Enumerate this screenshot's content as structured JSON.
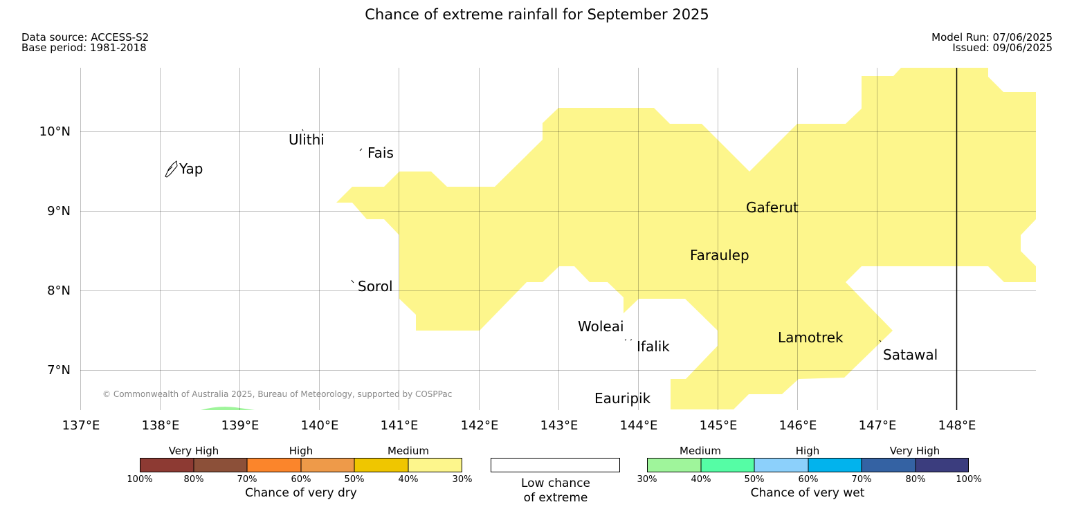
{
  "header": {
    "title": "Chance of extreme rainfall for September 2025",
    "data_source": "Data source: ACCESS-S2",
    "base_period": "Base period: 1981-2018",
    "model_run": "Model Run: 07/06/2025",
    "issued": "Issued: 09/06/2025"
  },
  "map": {
    "longitude_labels": [
      "137°E",
      "138°E",
      "139°E",
      "140°E",
      "141°E",
      "142°E",
      "143°E",
      "144°E",
      "145°E",
      "146°E",
      "147°E",
      "148°E"
    ],
    "latitude_labels": [
      "10°N",
      "9°N",
      "8°N",
      "7°N"
    ],
    "places": [
      "Yap",
      "Ulithi",
      "Fais",
      "Gaferut",
      "Faraulep",
      "Sorol",
      "Woleai",
      "Ifalik",
      "Lamotrek",
      "Satawal",
      "Eauripik"
    ],
    "copyright": "© Commonwealth of Australia 2025, Bureau of Meteorology, supported by COSPPac",
    "fill_colors": {
      "medium_dry": "#fdf68c",
      "medium_wet": "#9ff59b"
    }
  },
  "legend": {
    "dry": {
      "groups": [
        "Very High",
        "High",
        "Medium"
      ],
      "ticks": [
        "100%",
        "80%",
        "70%",
        "60%",
        "50%",
        "40%",
        "30%"
      ],
      "colors": [
        "#8d3a33",
        "#8c5039",
        "#fb852b",
        "#ee9a49",
        "#efc600",
        "#fdf68c"
      ],
      "caption": "Chance of very dry"
    },
    "neutral": {
      "caption_line1": "Low chance",
      "caption_line2": "of extreme"
    },
    "wet": {
      "groups": [
        "Medium",
        "High",
        "Very High"
      ],
      "ticks": [
        "30%",
        "40%",
        "50%",
        "60%",
        "70%",
        "80%",
        "100%"
      ],
      "colors": [
        "#9ff59b",
        "#55fda5",
        "#8cd0fb",
        "#02b3ed",
        "#3462a3",
        "#3b3d7e"
      ],
      "caption": "Chance of very wet"
    }
  }
}
